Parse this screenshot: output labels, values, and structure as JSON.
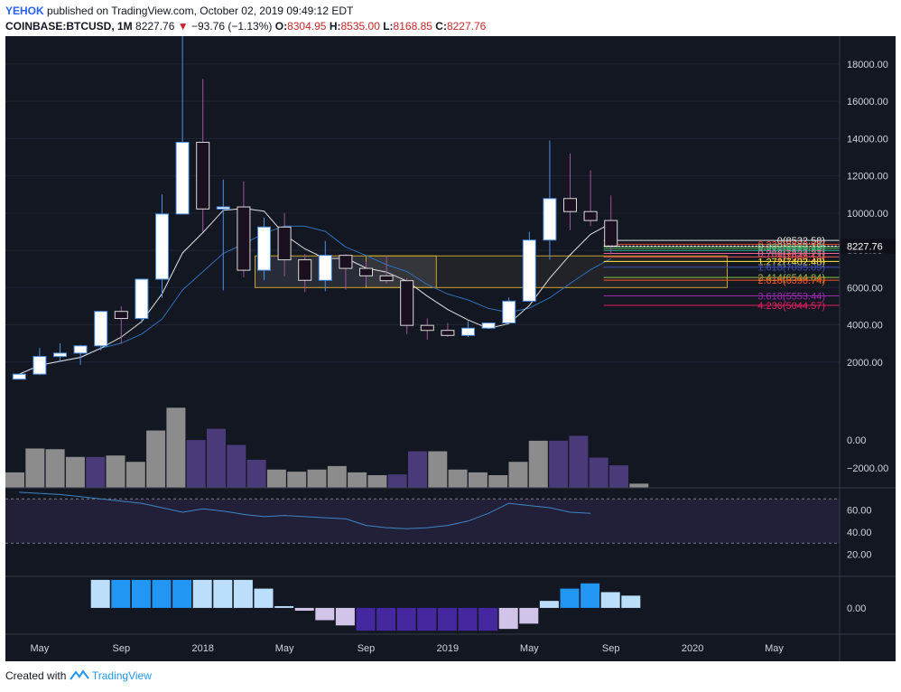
{
  "header": {
    "user": "YEHOK",
    "published_text": "published on TradingView.com, October 02, 2019 09:49:12 EDT",
    "symbol": "COINBASE:BTCUSD, 1M",
    "last": "8227.76",
    "change_arrow": "▼",
    "change": "−93.76 (−1.13%)",
    "open_label": "O:",
    "open": "8304.95",
    "high_label": "H:",
    "high": "8535.00",
    "low_label": "L:",
    "low": "8168.85",
    "close_label": "C:",
    "close": "8227.76"
  },
  "footer": {
    "created_with": "Created with",
    "brand": "TradingView",
    "logo_icon": "tradingview-logo-icon"
  },
  "colors": {
    "background": "#131722",
    "up_candle": "#ffffff",
    "down_candle": "#1a0f1f",
    "wick": "#a0529e",
    "ma_fast": "#e0e0e0",
    "ma_slow": "#2f6fb8",
    "volume_gray": "#8c8c8c",
    "volume_purple": "#4b3a7a",
    "rsi_line": "#3d85c6",
    "hist_light_blue": "#bbdefb",
    "hist_blue": "#2196f3",
    "hist_purple": "#4527a0",
    "hist_lavender": "#d1c4e9"
  },
  "chart_data": [
    {
      "type": "candlestick",
      "title": "COINBASE:BTCUSD, 1M",
      "x": [
        "2017-04",
        "2017-05",
        "2017-06",
        "2017-07",
        "2017-08",
        "2017-09",
        "2017-10",
        "2017-11",
        "2017-12",
        "2018-01",
        "2018-02",
        "2018-03",
        "2018-04",
        "2018-05",
        "2018-06",
        "2018-07",
        "2018-08",
        "2018-09",
        "2018-10",
        "2018-11",
        "2018-12",
        "2019-01",
        "2019-02",
        "2019-03",
        "2019-04",
        "2019-05",
        "2019-06",
        "2019-07",
        "2019-08",
        "2019-09"
      ],
      "open": [
        1080,
        1350,
        2300,
        2480,
        2870,
        4720,
        4340,
        6450,
        9950,
        13800,
        10220,
        10330,
        6930,
        9250,
        7490,
        6390,
        7730,
        7030,
        6630,
        6370,
        3970,
        3700,
        3430,
        3820,
        4100,
        5270,
        8550,
        10780,
        10080,
        9600
      ],
      "high": [
        1350,
        2750,
        3000,
        2920,
        4750,
        5000,
        6450,
        11000,
        19800,
        17200,
        11800,
        11700,
        9750,
        10000,
        7800,
        8500,
        7800,
        7400,
        7700,
        6500,
        4350,
        4100,
        4200,
        4100,
        5470,
        9000,
        13900,
        13200,
        12300,
        10950
      ],
      "low": [
        1080,
        1300,
        2000,
        1850,
        2620,
        2980,
        4100,
        5450,
        10000,
        9000,
        5850,
        6550,
        6400,
        6600,
        5750,
        5800,
        5880,
        6110,
        6200,
        3500,
        3200,
        3350,
        3350,
        3800,
        4100,
        5250,
        7500,
        9080,
        9300,
        7800
      ],
      "close": [
        1350,
        2300,
        2480,
        2870,
        4720,
        4340,
        6450,
        9950,
        13800,
        10220,
        10330,
        6930,
        9250,
        7490,
        6390,
        7730,
        7030,
        6630,
        6370,
        3970,
        3700,
        3430,
        3820,
        4100,
        5270,
        8550,
        10780,
        10080,
        9600,
        8227.76
      ],
      "ylim": [
        0,
        19500
      ],
      "y_ticks": [
        "18000.00",
        "16000.00",
        "14000.00",
        "12000.00",
        "10000.00",
        "8000.00",
        "6000.00",
        "4000.00",
        "2000.00"
      ],
      "price_label": "8227.76",
      "x_ticks": [
        "May",
        "Sep",
        "2018",
        "May",
        "Sep",
        "2019",
        "May",
        "Sep",
        "2020",
        "May"
      ],
      "fib_levels": [
        {
          "label": "0(8532.58)",
          "value": 8532.58
        },
        {
          "label": "0.236(8322.91)",
          "value": 8322.91
        },
        {
          "label": "0.382(8193.19)",
          "value": 8193.19
        },
        {
          "label": "0.5(8088.36)",
          "value": 8088.36
        },
        {
          "label": "0.618(7983.52)",
          "value": 7983.52
        },
        {
          "label": "0.786(7834.27)",
          "value": 7834.27
        },
        {
          "label": "1(7644.14)",
          "value": 7644.14
        },
        {
          "label": "1.272(7402.48)",
          "value": 7402.48
        },
        {
          "label": "1.618(7095.09)",
          "value": 7095.09
        },
        {
          "label": "2.414(6544.84)",
          "value": 6544.84
        },
        {
          "label": "2.618(6398.74)",
          "value": 6398.74
        },
        {
          "label": "3.618(5553.44)",
          "value": 5553.44
        },
        {
          "label": "4.236(5044.57)",
          "value": 5044.57
        }
      ]
    },
    {
      "type": "bar",
      "title": "Volume oscillator",
      "values": [
        -2300,
        -600,
        -650,
        -1200,
        -1200,
        -1100,
        -1550,
        680,
        2300,
        0,
        800,
        -350,
        -1400,
        -2100,
        -2250,
        -2100,
        -1850,
        -2300,
        -2500,
        -2450,
        -800,
        -800,
        -2100,
        -2300,
        -2500,
        -1550,
        -50,
        -50,
        300,
        -1250,
        -1800,
        -3100
      ],
      "ylim": [
        -3400,
        2900
      ],
      "y_ticks": [
        "0.00",
        "−2000.00"
      ]
    },
    {
      "type": "line",
      "title": "RSI",
      "values": [
        76,
        75,
        74,
        72,
        70,
        68,
        66,
        62,
        58,
        61,
        59,
        56,
        54,
        55,
        54,
        53,
        52,
        46,
        44,
        43,
        44,
        46,
        50,
        57,
        66,
        64,
        62,
        58,
        57
      ],
      "ylim": [
        0,
        80
      ],
      "y_ticks": [
        "60.00",
        "40.00",
        "20.00"
      ],
      "band": [
        30,
        70
      ]
    },
    {
      "type": "bar",
      "title": "Momentum histogram",
      "values": [
        80,
        80,
        80,
        80,
        80,
        80,
        80,
        80,
        55,
        5,
        -8,
        -35,
        -50,
        -65,
        -65,
        -65,
        -65,
        -65,
        -65,
        -65,
        -60,
        -45,
        20,
        55,
        70,
        45,
        35
      ],
      "ylim": [
        -75,
        90
      ],
      "y_ticks": [
        "0.00"
      ]
    }
  ]
}
